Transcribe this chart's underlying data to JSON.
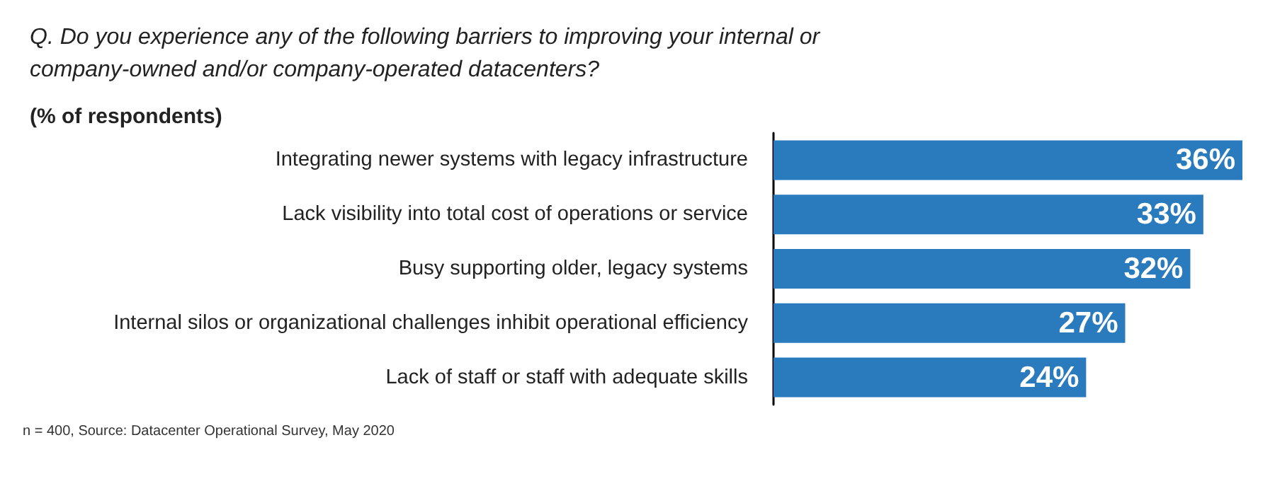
{
  "chart_data": {
    "type": "bar",
    "orientation": "horizontal",
    "title": "Q. Do you experience any of the following barriers to improving your internal or company-owned and/or company-operated datacenters?",
    "subtitle": "(% of respondents)",
    "categories": [
      "Integrating newer systems with legacy infrastructure",
      "Lack visibility into total cost of operations or service",
      "Busy supporting older, legacy systems",
      "Internal silos or organizational challenges inhibit operational efficiency",
      "Lack of staff or staff with adequate skills"
    ],
    "values": [
      36,
      33,
      32,
      27,
      24
    ],
    "value_labels": [
      "36%",
      "33%",
      "32%",
      "27%",
      "24%"
    ],
    "color": "#2a7bbd",
    "annotations": [
      "n = 400, Source: Datacenter Operational Survey, May 2020"
    ]
  }
}
